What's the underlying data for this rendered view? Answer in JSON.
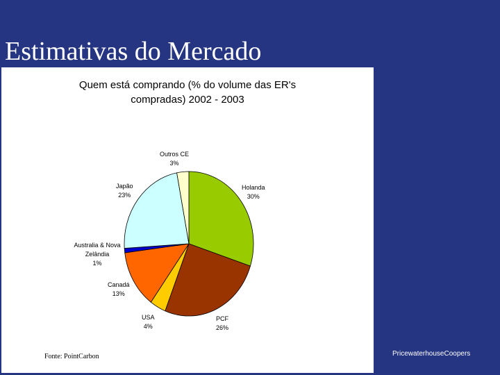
{
  "slide": {
    "title": "Estimativas do Mercado",
    "source": "Fonte: PointCarbon",
    "brand": "PricewaterhouseCoopers"
  },
  "chart_data": {
    "type": "pie",
    "title_line1": "Quem está comprando (% do volume das ER's",
    "title_line2": "compradas) 2002 - 2003",
    "slices": [
      {
        "name": "Holanda",
        "label": "30%",
        "value": 30,
        "color": "#99cc00"
      },
      {
        "name": "PCF",
        "label": "26%",
        "value": 26,
        "color": "#993300"
      },
      {
        "name": "USA",
        "label": "4%",
        "value": 4,
        "color": "#ffcc00"
      },
      {
        "name": "Canadá",
        "label": "13%",
        "value": 13,
        "color": "#ff6600"
      },
      {
        "name": "Australia & Nova Zelândia",
        "label": "1%",
        "value": 1,
        "color": "#0000cc"
      },
      {
        "name": "Japão",
        "label": "23%",
        "value": 23,
        "color": "#ccffff"
      },
      {
        "name": "Outros CE",
        "label": "3%",
        "value": 3,
        "color": "#ffffcc"
      }
    ]
  }
}
